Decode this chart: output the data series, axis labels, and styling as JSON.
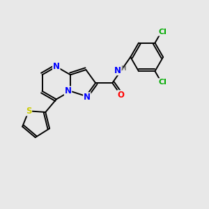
{
  "background_color": "#e8e8e8",
  "bond_color": "#000000",
  "atom_colors": {
    "N": "#0000ff",
    "O": "#ff0000",
    "S": "#cccc00",
    "Cl": "#00aa00",
    "C": "#000000",
    "H": "#7a7a7a"
  },
  "figsize": [
    3.0,
    3.0
  ],
  "dpi": 100
}
